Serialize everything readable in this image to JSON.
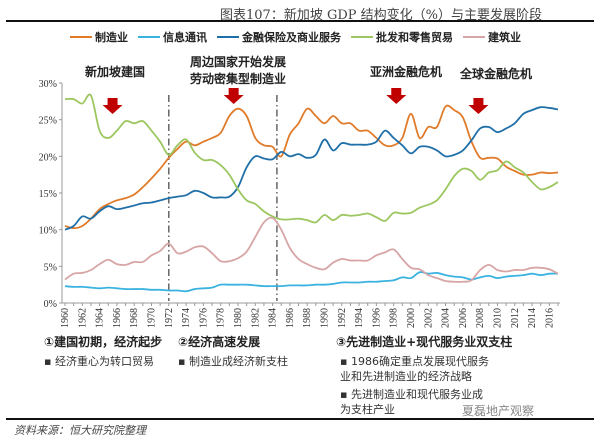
{
  "chart_data": {
    "type": "line",
    "title": "图表107：新加坡 GDP 结构变化（%）与主要发展阶段",
    "xlabel": "",
    "ylabel": "",
    "x_start": 1960,
    "x_end": 2017,
    "ylim": [
      0,
      30
    ],
    "y_ticks": [
      "0%",
      "5%",
      "10%",
      "15%",
      "20%",
      "25%",
      "30%"
    ],
    "x_ticks": [
      "1960",
      "1962",
      "1964",
      "1966",
      "1968",
      "1970",
      "1972",
      "1974",
      "1976",
      "1978",
      "1980",
      "1982",
      "1984",
      "1986",
      "1988",
      "1990",
      "1992",
      "1994",
      "1996",
      "1998",
      "2000",
      "2002",
      "2004",
      "2006",
      "2008",
      "2010",
      "2012",
      "2014",
      "2016"
    ],
    "legend_position": "top",
    "series": [
      {
        "name": "制造业",
        "color": "#e07b2a",
        "values": [
          10.5,
          10.2,
          10.5,
          11.5,
          12.8,
          13.5,
          14,
          14.3,
          14.8,
          15.8,
          17,
          18.3,
          19.8,
          21,
          22,
          21.5,
          22,
          22.5,
          23.2,
          25.5,
          26.5,
          25.5,
          22.5,
          21.5,
          21.3,
          20,
          23,
          24.5,
          26.5,
          25.5,
          24.5,
          25.5,
          24.5,
          24.5,
          23.5,
          23.5,
          22.5,
          21.5,
          21.5,
          22.5,
          25.8,
          22.5,
          24,
          24,
          26.8,
          26.3,
          25.3,
          22,
          19.8,
          19.8,
          19.7,
          18.6,
          18,
          17.5,
          17.5,
          17.8,
          17.7,
          17.8
        ]
      },
      {
        "name": "信息通讯",
        "color": "#3bb3e0",
        "values": [
          2.3,
          2.2,
          2.2,
          2.1,
          2.0,
          2.1,
          2.0,
          1.9,
          1.9,
          1.9,
          1.8,
          1.8,
          1.7,
          1.7,
          1.6,
          1.9,
          2.0,
          2.1,
          2.5,
          2.5,
          2.5,
          2.5,
          2.4,
          2.3,
          2.3,
          2.3,
          2.4,
          2.4,
          2.4,
          2.5,
          2.5,
          2.6,
          2.8,
          2.8,
          2.8,
          2.9,
          2.9,
          3.0,
          3.1,
          3.5,
          3.4,
          4.2,
          4.0,
          4.1,
          3.8,
          3.6,
          3.5,
          3.2,
          3.5,
          3.7,
          3.4,
          3.6,
          3.7,
          3.8,
          4.0,
          3.8,
          4.0,
          4.0
        ]
      },
      {
        "name": "金融保险及商业服务",
        "color": "#1f6fa8",
        "values": [
          10,
          10.5,
          11.8,
          11.5,
          12.5,
          13.2,
          12.8,
          13,
          13.3,
          13.6,
          13.7,
          14,
          14.3,
          14.5,
          14.7,
          15.3,
          15,
          14.4,
          14.4,
          14.5,
          15.8,
          18.5,
          20,
          19.7,
          19.6,
          20.6,
          20,
          20.3,
          19.8,
          20.2,
          22.3,
          20.8,
          21.8,
          21.6,
          21.6,
          21.6,
          22,
          23.5,
          22.5,
          21.5,
          20.4,
          21.3,
          21.3,
          20.8,
          20,
          20.2,
          20.8,
          22.2,
          23.8,
          24,
          23.3,
          23.8,
          24.5,
          25.8,
          26.3,
          26.7,
          26.6,
          26.4
        ]
      },
      {
        "name": "批发和零售贸易",
        "color": "#9cc760",
        "values": [
          27.8,
          27.8,
          27.2,
          28.3,
          23.5,
          22.5,
          23.5,
          24.8,
          24.5,
          24.8,
          23.5,
          22,
          20.2,
          21.5,
          22.3,
          20.5,
          19.5,
          19.5,
          18.8,
          17.5,
          15.5,
          14,
          13.5,
          12.5,
          11.8,
          11.4,
          11.4,
          11.5,
          11.3,
          11,
          12,
          11.3,
          12,
          11.9,
          12,
          12.2,
          11.7,
          11.2,
          12.3,
          12.2,
          12.3,
          13,
          13.4,
          14,
          15.5,
          17.3,
          18.3,
          18,
          16.8,
          17.8,
          18.1,
          19.3,
          18.5,
          17.8,
          16.5,
          15.5,
          15.8,
          16.5
        ]
      },
      {
        "name": "建筑业",
        "color": "#d7a5a5",
        "values": [
          3.2,
          4,
          4.1,
          4.5,
          5.3,
          5.9,
          5.3,
          5.2,
          5.6,
          5.6,
          6.5,
          7.1,
          8.1,
          6.8,
          7,
          7.6,
          7.7,
          6.8,
          5.7,
          5.7,
          6.1,
          7,
          9,
          11,
          11.6,
          10,
          7.5,
          6,
          5.3,
          4.8,
          4.6,
          5.5,
          6,
          5.8,
          5.8,
          5.8,
          6.5,
          6.9,
          7.3,
          6,
          4.8,
          4.6,
          3.8,
          3.4,
          3,
          2.9,
          2.9,
          3.1,
          4.5,
          5.2,
          4.5,
          4.3,
          4.5,
          4.5,
          4.8,
          4.8,
          4.6,
          4
        ]
      }
    ],
    "stage_dividers": [
      1972,
      1984.5
    ],
    "event_arrows": [
      1965.5,
      1979.5,
      1998.3,
      2007.8
    ],
    "annotations": {
      "founding": "新加坡建国",
      "neighbors_line1": "周边国家开始发展",
      "neighbors_line2": "劳动密集型制造业",
      "asian_crisis": "亚洲金融危机",
      "global_crisis": "全球金融危机"
    },
    "arrow_color": "#c00000"
  },
  "stages": [
    {
      "heading": "①建国初期，经济起步",
      "bullets": [
        "经济重心为转口贸易"
      ]
    },
    {
      "heading": "②经济高速发展",
      "bullets": [
        "制造业成经济新支柱"
      ]
    },
    {
      "heading": "③先进制造业+现代服务业双支柱",
      "bullets": [
        "1986确定重点发展现代服务业和先进制造业的经济战略",
        "先进制造业和现代服务业成为支柱产业"
      ]
    }
  ],
  "source": "资料来源：恒大研究院整理",
  "watermark": "夏磊地产观察"
}
